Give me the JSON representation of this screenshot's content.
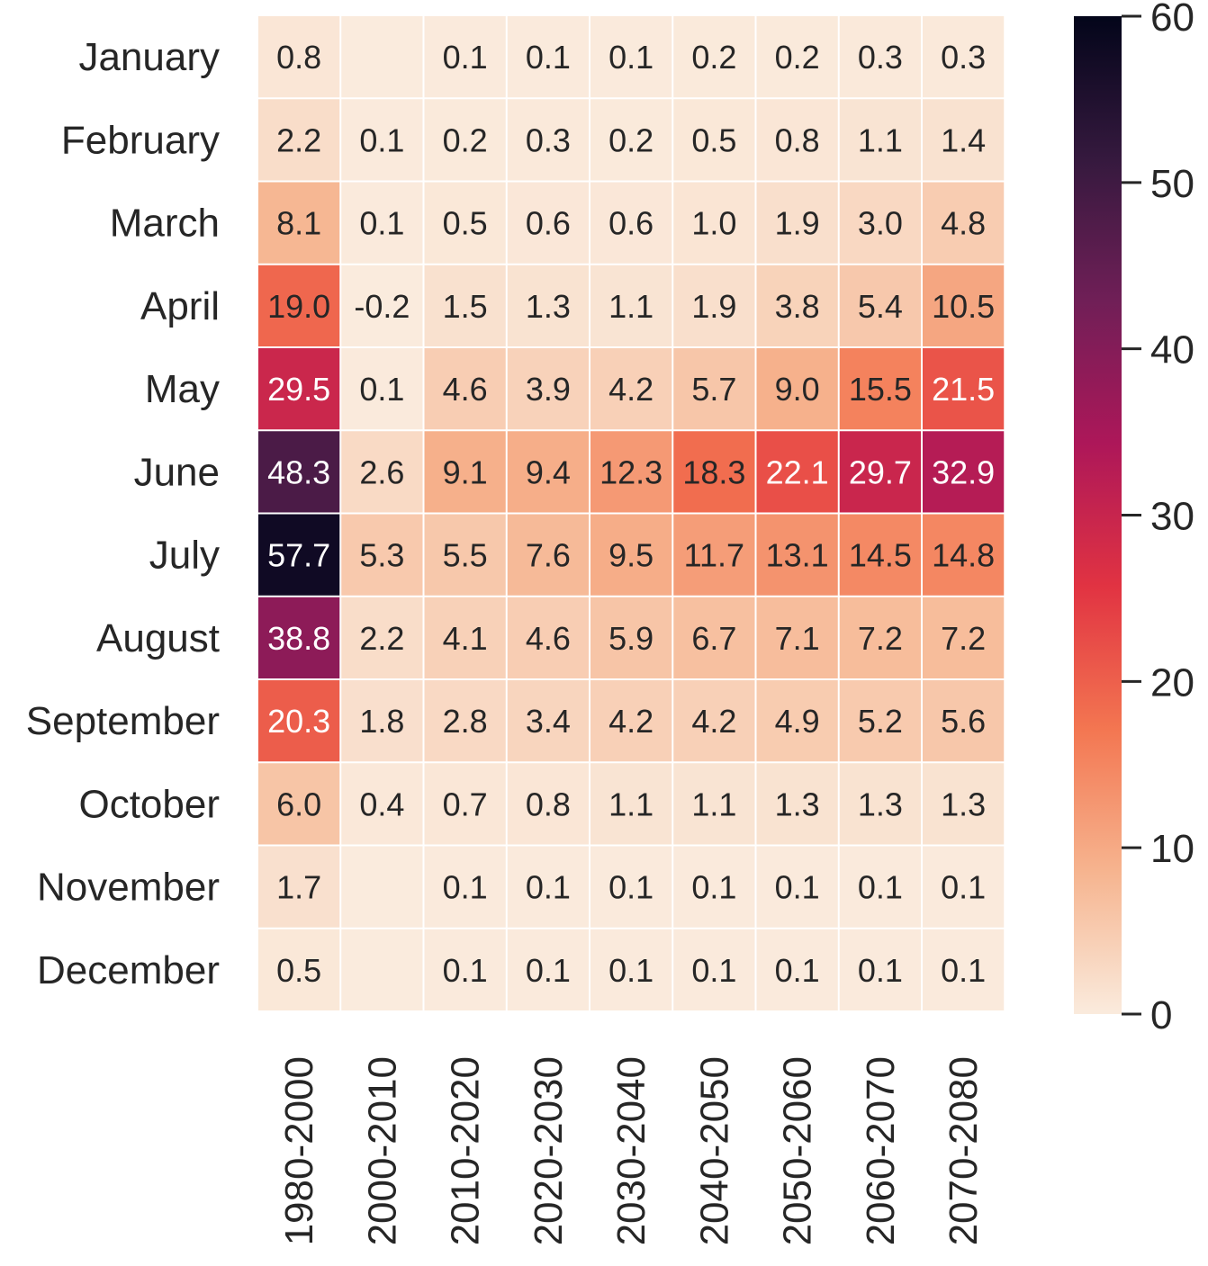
{
  "chart_data": {
    "type": "heatmap",
    "title": "",
    "xlabel": "",
    "ylabel": "",
    "columns": [
      "1980-2000",
      "2000-2010",
      "2010-2020",
      "2020-2030",
      "2030-2040",
      "2040-2050",
      "2050-2060",
      "2060-2070",
      "2070-2080"
    ],
    "rows": [
      "January",
      "February",
      "March",
      "April",
      "May",
      "June",
      "July",
      "August",
      "September",
      "October",
      "November",
      "December"
    ],
    "values": [
      [
        0.8,
        0.0,
        0.1,
        0.1,
        0.1,
        0.2,
        0.2,
        0.3,
        0.3
      ],
      [
        2.2,
        0.1,
        0.2,
        0.3,
        0.2,
        0.5,
        0.8,
        1.1,
        1.4
      ],
      [
        8.1,
        0.1,
        0.5,
        0.6,
        0.6,
        1.0,
        1.9,
        3.0,
        4.8
      ],
      [
        19.0,
        -0.2,
        1.5,
        1.3,
        1.1,
        1.9,
        3.8,
        5.4,
        10.5
      ],
      [
        29.5,
        0.1,
        4.6,
        3.9,
        4.2,
        5.7,
        9.0,
        15.5,
        21.5
      ],
      [
        48.3,
        2.6,
        9.1,
        9.4,
        12.3,
        18.3,
        22.1,
        29.7,
        32.9
      ],
      [
        57.7,
        5.3,
        5.5,
        7.6,
        9.5,
        11.7,
        13.1,
        14.5,
        14.8
      ],
      [
        38.8,
        2.2,
        4.1,
        4.6,
        5.9,
        6.7,
        7.1,
        7.2,
        7.2
      ],
      [
        20.3,
        1.8,
        2.8,
        3.4,
        4.2,
        4.2,
        4.9,
        5.2,
        5.6
      ],
      [
        6.0,
        0.4,
        0.7,
        0.8,
        1.1,
        1.1,
        1.3,
        1.3,
        1.3
      ],
      [
        1.7,
        0.0,
        0.1,
        0.1,
        0.1,
        0.1,
        0.1,
        0.1,
        0.1
      ],
      [
        0.5,
        0.0,
        0.1,
        0.1,
        0.1,
        0.1,
        0.1,
        0.1,
        0.1
      ]
    ],
    "labels": [
      [
        "0.8",
        "",
        "0.1",
        "0.1",
        "0.1",
        "0.2",
        "0.2",
        "0.3",
        "0.3"
      ],
      [
        "2.2",
        "0.1",
        "0.2",
        "0.3",
        "0.2",
        "0.5",
        "0.8",
        "1.1",
        "1.4"
      ],
      [
        "8.1",
        "0.1",
        "0.5",
        "0.6",
        "0.6",
        "1.0",
        "1.9",
        "3.0",
        "4.8"
      ],
      [
        "19.0",
        "-0.2",
        "1.5",
        "1.3",
        "1.1",
        "1.9",
        "3.8",
        "5.4",
        "10.5"
      ],
      [
        "29.5",
        "0.1",
        "4.6",
        "3.9",
        "4.2",
        "5.7",
        "9.0",
        "15.5",
        "21.5"
      ],
      [
        "48.3",
        "2.6",
        "9.1",
        "9.4",
        "12.3",
        "18.3",
        "22.1",
        "29.7",
        "32.9"
      ],
      [
        "57.7",
        "5.3",
        "5.5",
        "7.6",
        "9.5",
        "11.7",
        "13.1",
        "14.5",
        "14.8"
      ],
      [
        "38.8",
        "2.2",
        "4.1",
        "4.6",
        "5.9",
        "6.7",
        "7.1",
        "7.2",
        "7.2"
      ],
      [
        "20.3",
        "1.8",
        "2.8",
        "3.4",
        "4.2",
        "4.2",
        "4.9",
        "5.2",
        "5.6"
      ],
      [
        "6.0",
        "0.4",
        "0.7",
        "0.8",
        "1.1",
        "1.1",
        "1.3",
        "1.3",
        "1.3"
      ],
      [
        "1.7",
        "",
        "0.1",
        "0.1",
        "0.1",
        "0.1",
        "0.1",
        "0.1",
        "0.1"
      ],
      [
        "0.5",
        "",
        "0.1",
        "0.1",
        "0.1",
        "0.1",
        "0.1",
        "0.1",
        "0.1"
      ]
    ],
    "colorbar": {
      "min": 0,
      "max": 60,
      "ticks": [
        0,
        10,
        20,
        30,
        40,
        50,
        60
      ],
      "colormap": "rocket_r",
      "colors": [
        "#faebdd",
        "#f6b48f",
        "#f37651",
        "#e13342",
        "#ad1759",
        "#701f57",
        "#35193e",
        "#03051a"
      ]
    },
    "grid": false,
    "legend": "colorbar-right"
  }
}
